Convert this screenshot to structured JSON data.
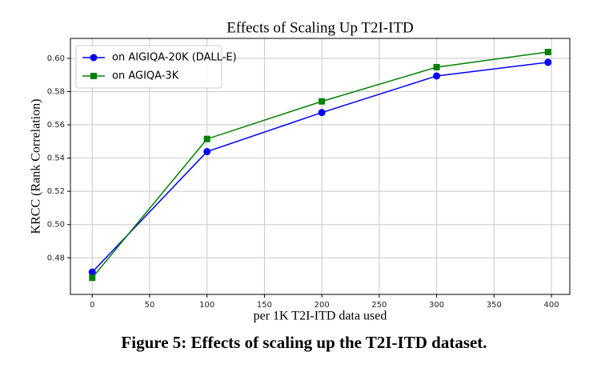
{
  "chart_data": {
    "type": "line",
    "title": "Effects of Scaling Up T2I-ITD",
    "xlabel": "per 1K T2I-ITD data used",
    "ylabel": "KRCC (Rank Correlation)",
    "x": [
      0,
      100,
      200,
      300,
      397
    ],
    "series": [
      {
        "name": "on AIGIQA-20K (DALL-E)",
        "color": "#0000ff",
        "marker": "circle",
        "values": [
          0.4714,
          0.5439,
          0.5674,
          0.5894,
          0.5976
        ]
      },
      {
        "name": "on AGIQA-3K",
        "color": "#008000",
        "marker": "square",
        "values": [
          0.468,
          0.5515,
          0.5741,
          0.5947,
          0.6038
        ]
      }
    ],
    "xlim": [
      -19,
      416
    ],
    "xticks": [
      0,
      50,
      100,
      150,
      200,
      250,
      300,
      350,
      400
    ],
    "ylim": [
      0.458,
      0.612
    ],
    "yticks": [
      0.48,
      {
        "value": 0.5,
        "label": "0.50"
      },
      0.52,
      0.54,
      0.56,
      0.58,
      {
        "value": 0.6,
        "label": "0.60"
      }
    ],
    "grid": true,
    "legend": "upper left"
  },
  "caption": "Figure 5: Effects of scaling up the T2I-ITD dataset."
}
